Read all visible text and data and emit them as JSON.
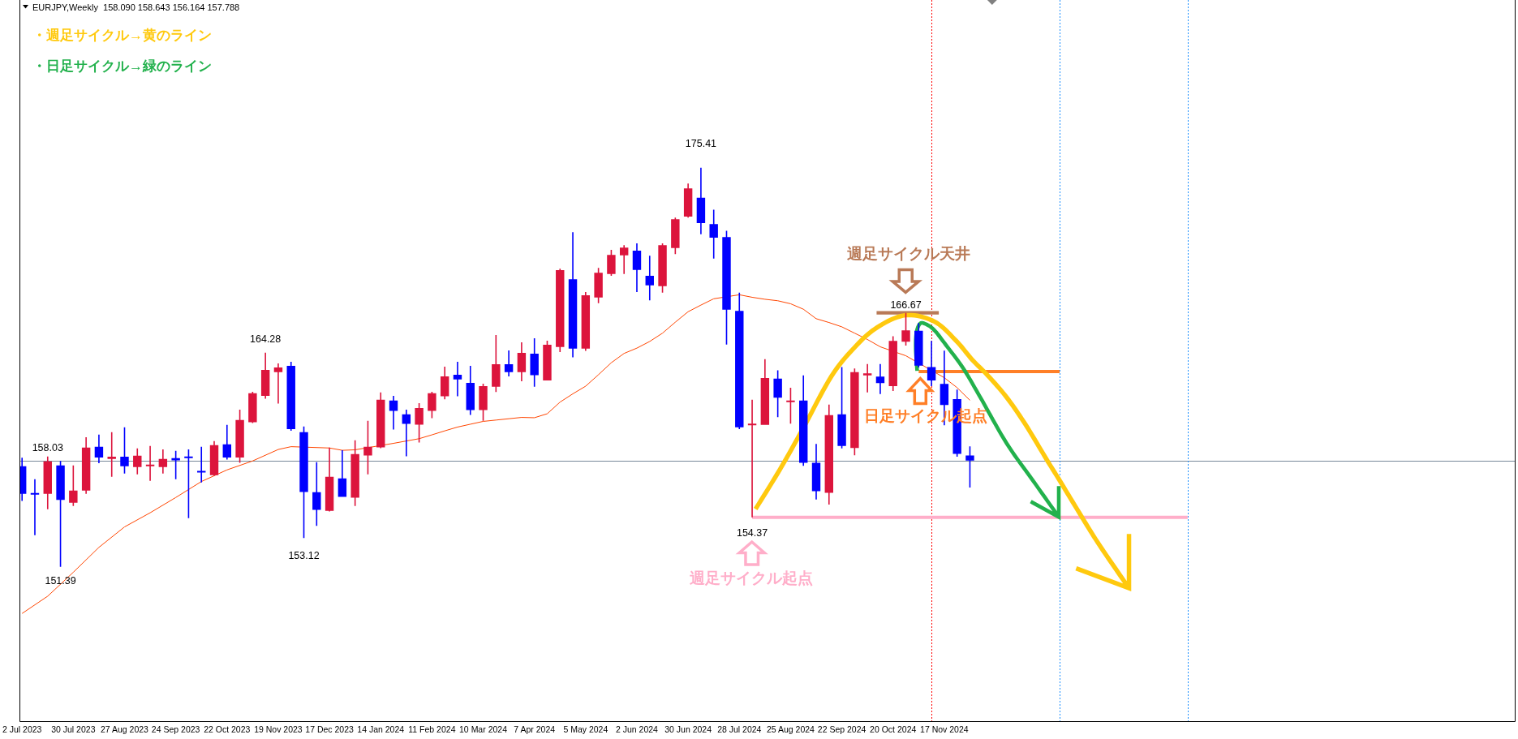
{
  "chart_data": {
    "type": "candlestick",
    "title": "EURJPY,Weekly  158.090 158.643 156.164 157.788",
    "x": [
      "2023-07-02",
      "2023-07-09",
      "2023-07-16",
      "2023-07-23",
      "2023-07-30",
      "2023-08-06",
      "2023-08-13",
      "2023-08-20",
      "2023-08-27",
      "2023-09-03",
      "2023-09-10",
      "2023-09-17",
      "2023-09-24",
      "2023-10-01",
      "2023-10-08",
      "2023-10-15",
      "2023-10-22",
      "2023-10-29",
      "2023-11-05",
      "2023-11-12",
      "2023-11-19",
      "2023-11-26",
      "2023-12-03",
      "2023-12-10",
      "2023-12-17",
      "2023-12-24",
      "2023-12-31",
      "2024-01-07",
      "2024-01-14",
      "2024-01-21",
      "2024-01-28",
      "2024-02-04",
      "2024-02-11",
      "2024-02-18",
      "2024-02-25",
      "2024-03-03",
      "2024-03-10",
      "2024-03-17",
      "2024-03-24",
      "2024-03-31",
      "2024-04-07",
      "2024-04-14",
      "2024-04-21",
      "2024-04-28",
      "2024-05-05",
      "2024-05-12",
      "2024-05-19",
      "2024-05-26",
      "2024-06-02",
      "2024-06-09",
      "2024-06-16",
      "2024-06-23",
      "2024-06-30",
      "2024-07-07",
      "2024-07-14",
      "2024-07-21",
      "2024-07-28",
      "2024-08-04",
      "2024-08-11",
      "2024-08-18",
      "2024-08-25",
      "2024-09-01",
      "2024-09-08",
      "2024-09-15",
      "2024-09-22",
      "2024-09-29",
      "2024-10-06",
      "2024-10-13",
      "2024-10-20",
      "2024-10-27",
      "2024-11-03",
      "2024-11-10",
      "2024-11-17",
      "2024-11-24",
      "2024-12-01"
    ],
    "ohlc": [
      [
        157.44,
        157.95,
        155.36,
        155.78
      ],
      [
        155.8,
        156.66,
        153.29,
        155.76
      ],
      [
        155.78,
        158.03,
        154.85,
        157.73
      ],
      [
        157.49,
        157.76,
        151.39,
        155.41
      ],
      [
        155.24,
        157.49,
        155.05,
        155.98
      ],
      [
        155.98,
        159.19,
        155.78,
        158.56
      ],
      [
        158.61,
        159.34,
        157.63,
        157.97
      ],
      [
        157.88,
        159.49,
        156.81,
        158.02
      ],
      [
        158.02,
        159.78,
        157.0,
        157.44
      ],
      [
        157.39,
        158.51,
        156.95,
        158.07
      ],
      [
        157.44,
        158.66,
        156.56,
        157.54
      ],
      [
        157.39,
        158.46,
        157.0,
        157.88
      ],
      [
        157.93,
        158.37,
        156.66,
        157.8
      ],
      [
        158.02,
        158.46,
        154.32,
        157.94
      ],
      [
        157.15,
        158.61,
        156.46,
        157.07
      ],
      [
        156.9,
        158.95,
        156.87,
        158.71
      ],
      [
        158.76,
        159.93,
        157.85,
        157.97
      ],
      [
        157.97,
        160.85,
        157.65,
        160.22
      ],
      [
        160.09,
        161.92,
        160.04,
        161.83
      ],
      [
        161.68,
        164.28,
        161.5,
        163.24
      ],
      [
        163.11,
        163.63,
        161.21,
        163.39
      ],
      [
        163.48,
        163.73,
        159.58,
        159.68
      ],
      [
        159.49,
        159.83,
        153.12,
        155.89
      ],
      [
        155.88,
        157.68,
        153.85,
        154.82
      ],
      [
        154.76,
        158.56,
        154.72,
        156.81
      ],
      [
        156.71,
        158.41,
        155.6,
        155.6
      ],
      [
        155.55,
        159.0,
        155.05,
        158.17
      ],
      [
        158.09,
        160.17,
        156.95,
        158.61
      ],
      [
        158.58,
        161.88,
        158.53,
        161.44
      ],
      [
        161.39,
        161.68,
        159.65,
        160.77
      ],
      [
        160.56,
        160.85,
        158.04,
        159.99
      ],
      [
        159.94,
        161.24,
        158.87,
        160.95
      ],
      [
        160.77,
        161.92,
        160.33,
        161.83
      ],
      [
        161.65,
        163.43,
        161.47,
        162.85
      ],
      [
        162.95,
        163.73,
        161.65,
        162.67
      ],
      [
        162.46,
        163.48,
        160.53,
        160.82
      ],
      [
        160.82,
        162.41,
        160.18,
        162.26
      ],
      [
        162.23,
        165.34,
        161.91,
        163.58
      ],
      [
        163.58,
        164.41,
        162.85,
        163.11
      ],
      [
        163.11,
        164.9,
        162.56,
        164.26
      ],
      [
        164.21,
        165.14,
        162.23,
        162.92
      ],
      [
        162.61,
        165.0,
        162.61,
        164.75
      ],
      [
        164.62,
        169.33,
        164.31,
        169.24
      ],
      [
        168.7,
        171.53,
        163.99,
        164.52
      ],
      [
        164.52,
        167.92,
        164.38,
        167.73
      ],
      [
        167.6,
        169.38,
        167.25,
        169.09
      ],
      [
        169.01,
        170.46,
        168.9,
        170.16
      ],
      [
        170.13,
        170.75,
        169.01,
        170.6
      ],
      [
        170.41,
        170.85,
        167.92,
        169.25
      ],
      [
        168.9,
        170.11,
        167.43,
        168.33
      ],
      [
        168.28,
        170.85,
        167.89,
        170.75
      ],
      [
        170.57,
        172.41,
        170.21,
        172.31
      ],
      [
        172.47,
        174.45,
        172.4,
        174.16
      ],
      [
        173.6,
        175.41,
        171.4,
        172.08
      ],
      [
        172.01,
        172.88,
        169.94,
        171.19
      ],
      [
        171.23,
        171.61,
        164.77,
        166.86
      ],
      [
        166.79,
        167.89,
        159.67,
        159.79
      ],
      [
        159.91,
        161.44,
        154.37,
        160.0
      ],
      [
        159.93,
        163.88,
        159.93,
        162.75
      ],
      [
        162.71,
        163.22,
        160.4,
        161.57
      ],
      [
        161.3,
        162.17,
        160.0,
        161.39
      ],
      [
        161.39,
        162.91,
        157.47,
        157.65
      ],
      [
        157.65,
        158.78,
        155.44,
        155.94
      ],
      [
        155.84,
        161.15,
        155.14,
        160.52
      ],
      [
        160.57,
        163.41,
        158.52,
        158.66
      ],
      [
        158.54,
        163.32,
        158.1,
        163.1
      ],
      [
        162.91,
        163.59,
        161.88,
        163.03
      ],
      [
        162.84,
        163.59,
        161.79,
        162.44
      ],
      [
        162.26,
        165.27,
        161.97,
        164.98
      ],
      [
        164.93,
        166.67,
        164.7,
        165.62
      ],
      [
        165.59,
        166.06,
        163.39,
        163.5
      ],
      [
        163.41,
        164.98,
        162.26,
        162.61
      ],
      [
        162.4,
        164.4,
        159.91,
        161.13
      ],
      [
        161.48,
        162.05,
        158.01,
        158.19
      ],
      [
        158.09,
        158.643,
        156.164,
        157.788
      ]
    ],
    "colors": [
      "#0000ff",
      "#0000ff",
      "#dc143c",
      "#0000ff",
      "#dc143c",
      "#dc143c",
      "#0000ff",
      "#dc143c",
      "#0000ff",
      "#dc143c",
      "#dc143c",
      "#dc143c",
      "#0000ff",
      "#0000ff",
      "#0000ff",
      "#dc143c",
      "#0000ff",
      "#dc143c",
      "#dc143c",
      "#dc143c",
      "#dc143c",
      "#0000ff",
      "#0000ff",
      "#0000ff",
      "#dc143c",
      "#0000ff",
      "#dc143c",
      "#dc143c",
      "#dc143c",
      "#0000ff",
      "#0000ff",
      "#dc143c",
      "#dc143c",
      "#dc143c",
      "#0000ff",
      "#0000ff",
      "#dc143c",
      "#dc143c",
      "#0000ff",
      "#dc143c",
      "#0000ff",
      "#dc143c",
      "#dc143c",
      "#0000ff",
      "#dc143c",
      "#dc143c",
      "#dc143c",
      "#dc143c",
      "#0000ff",
      "#0000ff",
      "#dc143c",
      "#dc143c",
      "#dc143c",
      "#0000ff",
      "#0000ff",
      "#0000ff",
      "#0000ff",
      "#dc143c",
      "#dc143c",
      "#0000ff",
      "#dc143c",
      "#0000ff",
      "#0000ff",
      "#dc143c",
      "#0000ff",
      "#dc143c",
      "#dc143c",
      "#0000ff",
      "#dc143c",
      "#dc143c",
      "#0000ff",
      "#0000ff",
      "#0000ff",
      "#0000ff",
      "#0000ff"
    ],
    "series": [
      {
        "type": "line",
        "color": "#ff4500",
        "x": [
          "2023-07-02",
          "2023-07-16",
          "2023-07-30",
          "2023-08-13",
          "2023-08-27",
          "2023-09-10",
          "2023-09-24",
          "2023-10-08",
          "2023-10-22",
          "2023-11-05",
          "2023-11-19",
          "2023-11-26",
          "2023-12-17",
          "2023-12-24",
          "2023-12-31",
          "2024-01-21",
          "2024-01-28",
          "2024-02-04",
          "2024-02-11",
          "2024-02-18",
          "2024-02-25",
          "2024-03-03",
          "2024-03-10",
          "2024-03-17",
          "2024-03-24",
          "2024-03-31",
          "2024-04-07",
          "2024-04-14",
          "2024-04-21",
          "2024-04-28",
          "2024-05-05",
          "2024-05-12",
          "2024-05-19",
          "2024-05-26",
          "2024-06-02",
          "2024-06-09",
          "2024-06-16",
          "2024-06-23",
          "2024-06-30",
          "2024-07-07",
          "2024-07-14",
          "2024-07-28",
          "2024-08-04",
          "2024-08-11",
          "2024-08-18",
          "2024-08-25",
          "2024-09-01",
          "2024-09-08",
          "2024-09-15",
          "2024-09-22",
          "2024-09-29",
          "2024-10-06",
          "2024-10-13",
          "2024-10-27",
          "2024-11-17",
          "2024-11-24",
          "2024-12-01"
        ],
        "values": [
          148.58,
          149.62,
          151.06,
          152.56,
          153.79,
          154.64,
          155.56,
          156.52,
          157.22,
          157.76,
          158.45,
          158.62,
          158.54,
          158.4,
          158.43,
          158.82,
          158.96,
          159.1,
          159.33,
          159.57,
          159.8,
          159.97,
          160.14,
          160.22,
          160.3,
          160.38,
          160.36,
          160.6,
          161.3,
          161.8,
          162.26,
          162.95,
          163.67,
          164.23,
          164.55,
          164.95,
          165.45,
          166.11,
          166.74,
          167.14,
          167.52,
          167.76,
          167.61,
          167.49,
          167.4,
          167.22,
          166.89,
          166.32,
          166.09,
          165.83,
          165.45,
          165.07,
          164.63,
          164.09,
          162.77,
          162.17,
          161.41
        ]
      },
      {
        "type": "line",
        "color": "#ffaec9",
        "x": [
          "2024-08-04",
          "2025-03-30"
        ],
        "values": [
          154.37,
          154.37
        ]
      },
      {
        "type": "line",
        "color": "#ff7f27",
        "x": [
          "2024-11-03",
          "2025-01-19"
        ],
        "values": [
          163.14,
          163.14
        ]
      },
      {
        "type": "line",
        "color": "#b97a57",
        "x": [
          "2024-10-11",
          "2024-11-14"
        ],
        "values": [
          166.67,
          166.67
        ]
      }
    ],
    "ref_lines": [
      {
        "axis": "y",
        "value": 157.788,
        "color": "#778899",
        "line_style": "solid"
      },
      {
        "axis": "x",
        "value": "2024-11-10",
        "color": "#ff0000",
        "line_style": "dotted"
      },
      {
        "axis": "x",
        "value": "2025-01-19",
        "color": "#1e90ff",
        "line_style": "dotted"
      },
      {
        "axis": "x",
        "value": "2025-03-30",
        "color": "#1e90ff",
        "line_style": "dotted"
      }
    ],
    "annotations": [
      "・週足サイクル→黄のライン",
      "・日足サイクル→緑のライン",
      {
        "text": "175.41",
        "x": "2024-07-07",
        "y": 175.41
      },
      {
        "text": "164.28",
        "x": "2023-11-12",
        "y": 164.28
      },
      {
        "text": "158.03",
        "x": "2023-07-16",
        "y": 158.03
      },
      {
        "text": "151.39",
        "x": "2023-07-23",
        "y": 151.39
      },
      {
        "text": "153.12",
        "x": "2023-12-03",
        "y": 153.12
      },
      {
        "text": "154.37",
        "x": "2024-08-04",
        "y": 154.37
      },
      {
        "text": "166.67",
        "x": "2024-10-27",
        "y": 166.67
      },
      "週足サイクル起点",
      "週足サイクル天井",
      {
        "text": "日足サイクル起点",
        "x": "2024-11-03",
        "y": 163.14
      }
    ],
    "xlim": [
      "2023-06-30T14:00",
      "2025-09-25T05:00"
    ],
    "ylim": [
      142.1,
      185.5
    ],
    "xticks": [
      {
        "value": "2023-07-02",
        "label": "2 Jul 2023"
      },
      {
        "value": "2023-07-30",
        "label": "30 Jul 2023"
      },
      {
        "value": "2023-08-27",
        "label": "27 Aug 2023"
      },
      {
        "value": "2023-09-24",
        "label": "24 Sep 2023"
      },
      {
        "value": "2023-10-22",
        "label": "22 Oct 2023"
      },
      {
        "value": "2023-11-19",
        "label": "19 Nov 2023"
      },
      {
        "value": "2023-12-17",
        "label": "17 Dec 2023"
      },
      {
        "value": "2024-01-14",
        "label": "14 Jan 2024"
      },
      {
        "value": "2024-02-11",
        "label": "11 Feb 2024"
      },
      {
        "value": "2024-03-10",
        "label": "10 Mar 2024"
      },
      {
        "value": "2024-04-07",
        "label": "7 Apr 2024"
      },
      {
        "value": "2024-05-05",
        "label": "5 May 2024"
      },
      {
        "value": "2024-06-02",
        "label": "2 Jun 2024"
      },
      {
        "value": "2024-06-30",
        "label": "30 Jun 2024"
      },
      {
        "value": "2024-07-28",
        "label": "28 Jul 2024"
      },
      {
        "value": "2024-08-25",
        "label": "25 Aug 2024"
      },
      {
        "value": "2024-09-22",
        "label": "22 Sep 2024"
      },
      {
        "value": "2024-10-20",
        "label": "20 Oct 2024"
      },
      {
        "value": "2024-11-17",
        "label": "17 Nov 2024"
      }
    ],
    "tick_labels": "x"
  }
}
